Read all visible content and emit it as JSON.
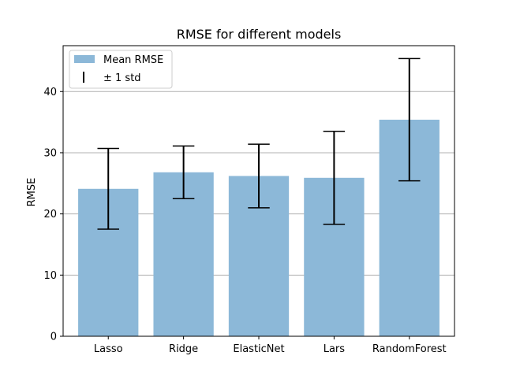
{
  "chart_data": {
    "type": "bar",
    "title": "RMSE for different models",
    "xlabel": "",
    "ylabel": "RMSE",
    "categories": [
      "Lasso",
      "Ridge",
      "ElasticNet",
      "Lars",
      "RandomForest"
    ],
    "series": [
      {
        "name": "Mean RMSE",
        "values": [
          24.1,
          26.8,
          26.2,
          25.9,
          35.4
        ],
        "error": [
          6.6,
          4.3,
          5.2,
          7.6,
          10.0
        ]
      }
    ],
    "error_label": "± 1 std",
    "ylim": [
      0,
      47.5
    ],
    "yticks": [
      0,
      10,
      20,
      30,
      40
    ],
    "grid": "y",
    "legend": "top-left",
    "colors": {
      "bar": "#8cb8d8",
      "error": "#000000",
      "grid": "#b0b0b0",
      "axis": "#000000"
    }
  }
}
